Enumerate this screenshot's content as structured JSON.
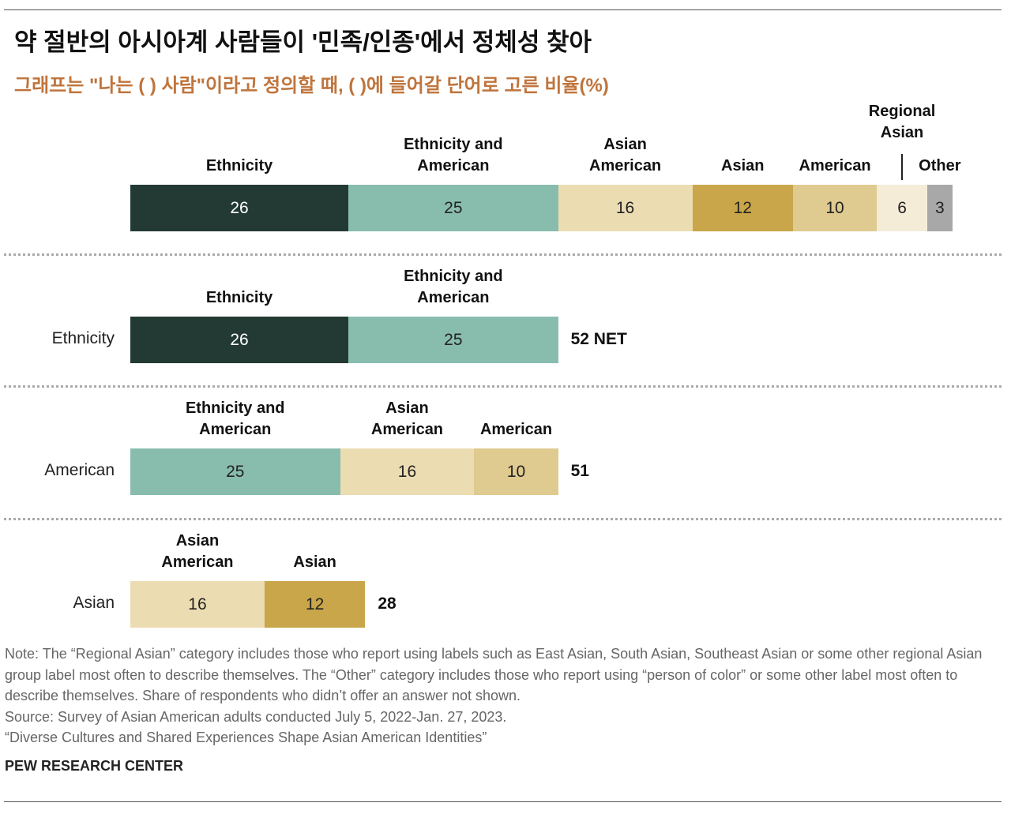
{
  "title": "약 절반의 아시아계 사람들이 '민족/인종'에서 정체성 찾아",
  "subtitle": "그래프는 \"나는 (     ) 사람\"이라고 정의할 때, (  )에 들어갈 단어로 고른 비율(%)",
  "chart_data": {
    "type": "stacked_bar",
    "rows": [
      {
        "segments": [
          {
            "name": "Ethnicity",
            "value": 26,
            "color": "#233a34"
          },
          {
            "name": "Ethnicity and American",
            "value": 25,
            "color": "#88bdae"
          },
          {
            "name": "Asian American",
            "value": 16,
            "color": "#ecdcb2"
          },
          {
            "name": "Asian",
            "value": 12,
            "color": "#c9a64a"
          },
          {
            "name": "American",
            "value": 10,
            "color": "#dfca8f"
          },
          {
            "name": "Regional Asian",
            "value": 6,
            "color": "#f5ecd8"
          },
          {
            "name": "Other",
            "value": 3,
            "color": "#a8a8a8"
          }
        ]
      },
      {
        "label": "Ethnicity",
        "total": 52,
        "total_label": "52 NET",
        "segments": [
          {
            "name": "Ethnicity",
            "value": 26,
            "color": "#233a34"
          },
          {
            "name": "Ethnicity and American",
            "value": 25,
            "color": "#88bdae"
          }
        ]
      },
      {
        "label": "American",
        "total": 51,
        "segments": [
          {
            "name": "Ethnicity and American",
            "value": 25,
            "color": "#88bdae"
          },
          {
            "name": "Asian American",
            "value": 16,
            "color": "#ecdcb2"
          },
          {
            "name": "American",
            "value": 10,
            "color": "#dfca8f"
          }
        ]
      },
      {
        "label": "Asian",
        "total": 28,
        "segments": [
          {
            "name": "Asian American",
            "value": 16,
            "color": "#ecdcb2"
          },
          {
            "name": "Asian",
            "value": 12,
            "color": "#c9a64a"
          }
        ]
      }
    ]
  },
  "note": "Note: The “Regional Asian” category includes those who report using labels such as East Asian, South Asian, Southeast Asian or some other regional Asian group label most often to describe themselves. The “Other” category includes those who report using “person of color” or some other label most often to describe themselves. Share of respondents who didn’t offer an answer not shown.",
  "source": "Source: Survey of Asian American adults conducted July 5, 2022-Jan. 27, 2023.",
  "report": "“Diverse Cultures and Shared Experiences Shape Asian American Identities”",
  "brand": "PEW RESEARCH CENTER"
}
